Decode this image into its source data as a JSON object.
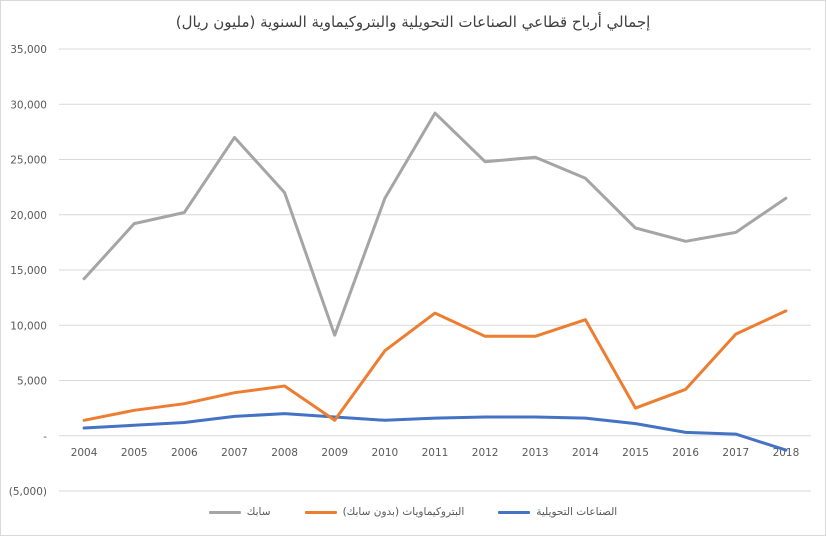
{
  "chart_data": {
    "type": "line",
    "title": "إجمالي أرباح قطاعي الصناعات التحويلية والبتروكيماوية السنوية (مليون ريال)",
    "x": [
      "2004",
      "2005",
      "2006",
      "2007",
      "2008",
      "2009",
      "2010",
      "2011",
      "2012",
      "2013",
      "2014",
      "2015",
      "2016",
      "2017",
      "2018"
    ],
    "ylim": [
      -5000,
      35000
    ],
    "yticks": [
      {
        "value": -5000,
        "label": "(5,000)"
      },
      {
        "value": 0,
        "label": "-"
      },
      {
        "value": 5000,
        "label": "5,000"
      },
      {
        "value": 10000,
        "label": "10,000"
      },
      {
        "value": 15000,
        "label": "15,000"
      },
      {
        "value": 20000,
        "label": "20,000"
      },
      {
        "value": 25000,
        "label": "25,000"
      },
      {
        "value": 30000,
        "label": "30,000"
      },
      {
        "value": 35000,
        "label": "35,000"
      }
    ],
    "grid": true,
    "legend_position": "bottom",
    "series": [
      {
        "name": "الصناعات التحويلية",
        "color": "#4472c4",
        "values": [
          700,
          950,
          1200,
          1750,
          2000,
          1700,
          1400,
          1600,
          1700,
          1700,
          1600,
          1100,
          300,
          150,
          -1300
        ]
      },
      {
        "name": "البتروكيماويات (بدون سابك)",
        "color": "#ed7d31",
        "values": [
          1400,
          2300,
          2900,
          3900,
          4500,
          1400,
          7700,
          11100,
          9000,
          9000,
          10500,
          2500,
          4200,
          9200,
          11300
        ]
      },
      {
        "name": "سابك",
        "color": "#a5a5a5",
        "values": [
          14200,
          19200,
          20200,
          27000,
          22000,
          9100,
          21500,
          29200,
          24800,
          25200,
          23300,
          18800,
          17600,
          18400,
          21500
        ]
      }
    ]
  }
}
